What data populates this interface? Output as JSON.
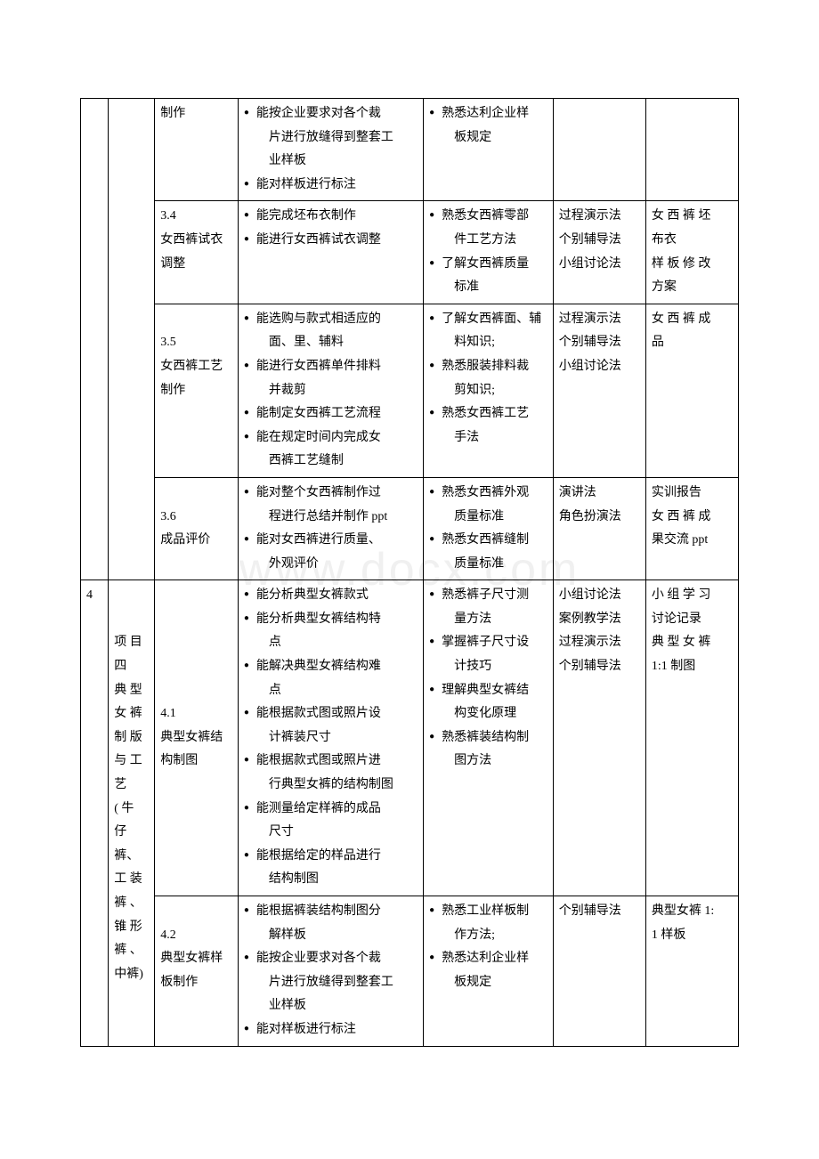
{
  "watermark": "www.docx.com",
  "rows": [
    {
      "col0": "",
      "col1": "",
      "col2": "制作",
      "col3": [
        "能按企业要求对各个裁片进行放缝得到整套工业样板",
        "能对样板进行标注"
      ],
      "col4": [
        "熟悉达利企业样板规定"
      ],
      "col5": "",
      "col6": ""
    },
    {
      "col2_num": "3.4",
      "col2_text": "女西裤试衣调整",
      "col3": [
        "能完成坯布衣制作",
        "能进行女西裤试衣调整"
      ],
      "col4": [
        "熟悉女西裤零部件工艺方法",
        "了解女西裤质量标准"
      ],
      "col5": [
        "过程演示法",
        "个别辅导法",
        "小组讨论法"
      ],
      "col6": [
        "女西裤坯布衣",
        "样板修改方案"
      ]
    },
    {
      "col2_num": "3.5",
      "col2_text": "女西裤工艺制作",
      "col3": [
        "能选购与款式相适应的面、里、辅料",
        "能进行女西裤单件排料并裁剪",
        "能制定女西裤工艺流程",
        "能在规定时间内完成女西裤工艺缝制"
      ],
      "col4": [
        "了解女西裤面、辅料知识;",
        "熟悉服装排料裁剪知识;",
        "熟悉女西裤工艺手法"
      ],
      "col5": [
        "过程演示法",
        "个别辅导法",
        "小组讨论法"
      ],
      "col6": [
        "女西裤成品"
      ]
    },
    {
      "col2_num": "3.6",
      "col2_text": "成品评价",
      "col3": [
        "能对整个女西裤制作过程进行总结并制作 ppt",
        "能对女西裤进行质量、外观评价"
      ],
      "col4": [
        "熟悉女西裤外观质量标准",
        "熟悉女西裤缝制质量标准"
      ],
      "col5": [
        "演讲法",
        "角色扮演法"
      ],
      "col6": [
        "实训报告",
        "女西裤成果交流 ppt"
      ]
    },
    {
      "col0": "4",
      "col1": "项目四\n典型女裤制版与工艺\n( 牛仔裤、工装裤、锥形裤、中裤)",
      "col2_num": "4.1",
      "col2_text": "典型女裤结构制图",
      "col3": [
        "能分析典型女裤款式",
        "能分析典型女裤结构特点",
        "能解决典型女裤结构难点",
        "能根据款式图或照片设计裤装尺寸",
        "能根据款式图或照片进行典型女裤的结构制图",
        "能测量给定样裤的成品尺寸",
        "能根据给定的样品进行结构制图"
      ],
      "col4": [
        "熟悉裤子尺寸测量方法",
        "掌握裤子尺寸设计技巧",
        "理解典型女裤结构变化原理",
        "熟悉裤装结构制图方法"
      ],
      "col5": [
        "小组讨论法",
        "案例教学法",
        "过程演示法",
        "个别辅导法"
      ],
      "col6": [
        "小组学习讨论记录",
        "典型女裤1:1 制图"
      ]
    },
    {
      "col2_num": "4.2",
      "col2_text": "典型女裤样板制作",
      "col3": [
        "能根据裤装结构制图分解样板",
        "能按企业要求对各个裁片进行放缝得到整套工业样板",
        "能对样板进行标注"
      ],
      "col4": [
        "熟悉工业样板制作方法;",
        "熟悉达利企业样板规定"
      ],
      "col5": [
        "个别辅导法"
      ],
      "col6": [
        "典型女裤 1:1 样板"
      ]
    }
  ]
}
